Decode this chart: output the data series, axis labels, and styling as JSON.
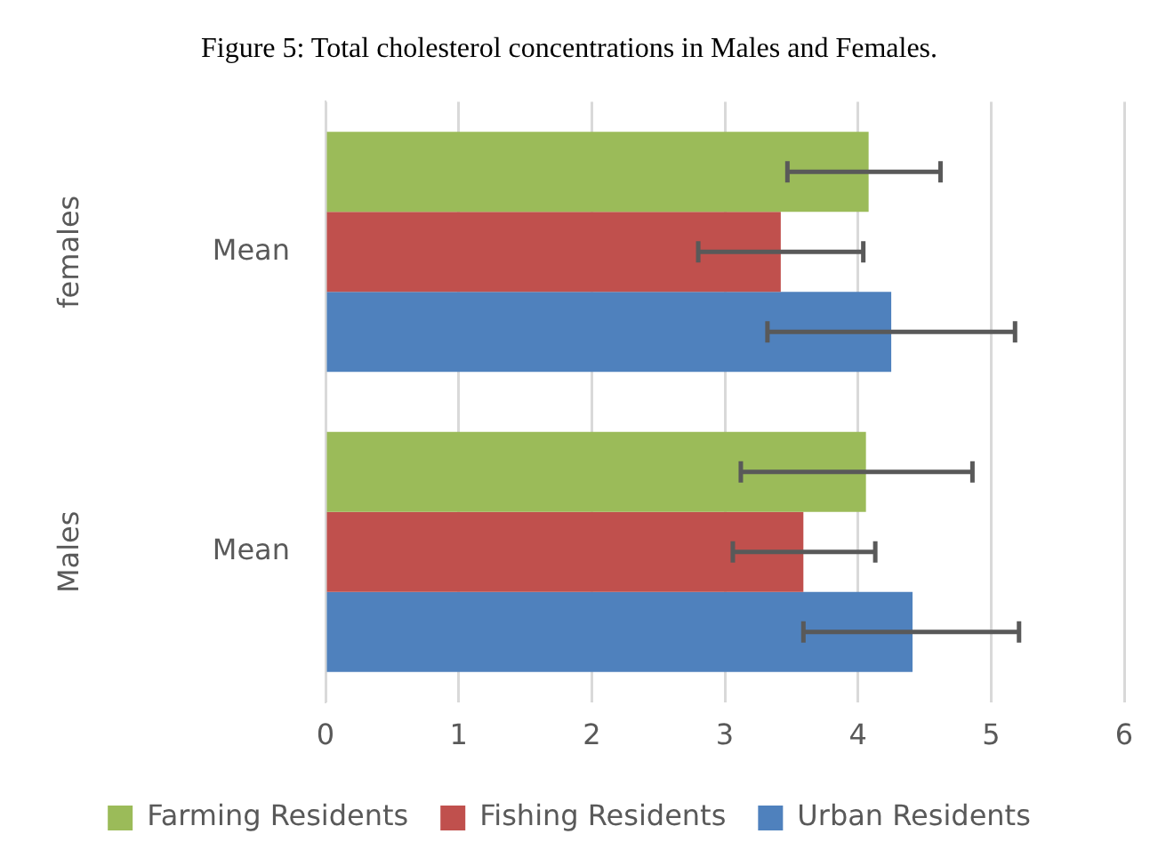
{
  "chart_data": {
    "type": "bar",
    "orientation": "horizontal",
    "title": "Figure 5: Total cholesterol concentrations in Males and Females.",
    "categories": [
      "Mean",
      "Mean"
    ],
    "annotations": [
      "females",
      "Males"
    ],
    "series": [
      {
        "name": "Farming Residents",
        "color": "#9bbb59",
        "values": [
          4.08,
          4.06
        ],
        "errors": [
          [
            3.47,
            4.62
          ],
          [
            3.12,
            4.86
          ]
        ]
      },
      {
        "name": "Fishing Residents",
        "color": "#c0504d",
        "values": [
          3.42,
          3.59
        ],
        "errors": [
          [
            2.8,
            4.04
          ],
          [
            3.06,
            4.13
          ]
        ]
      },
      {
        "name": "Urban Residents",
        "color": "#4f81bd",
        "values": [
          4.25,
          4.41
        ],
        "errors": [
          [
            3.32,
            5.18
          ],
          [
            3.59,
            5.21
          ]
        ]
      }
    ],
    "xlim": [
      0,
      6
    ],
    "xticks": [
      0,
      1,
      2,
      3,
      4,
      5,
      6
    ],
    "grid": "x",
    "legend": "bottom"
  }
}
